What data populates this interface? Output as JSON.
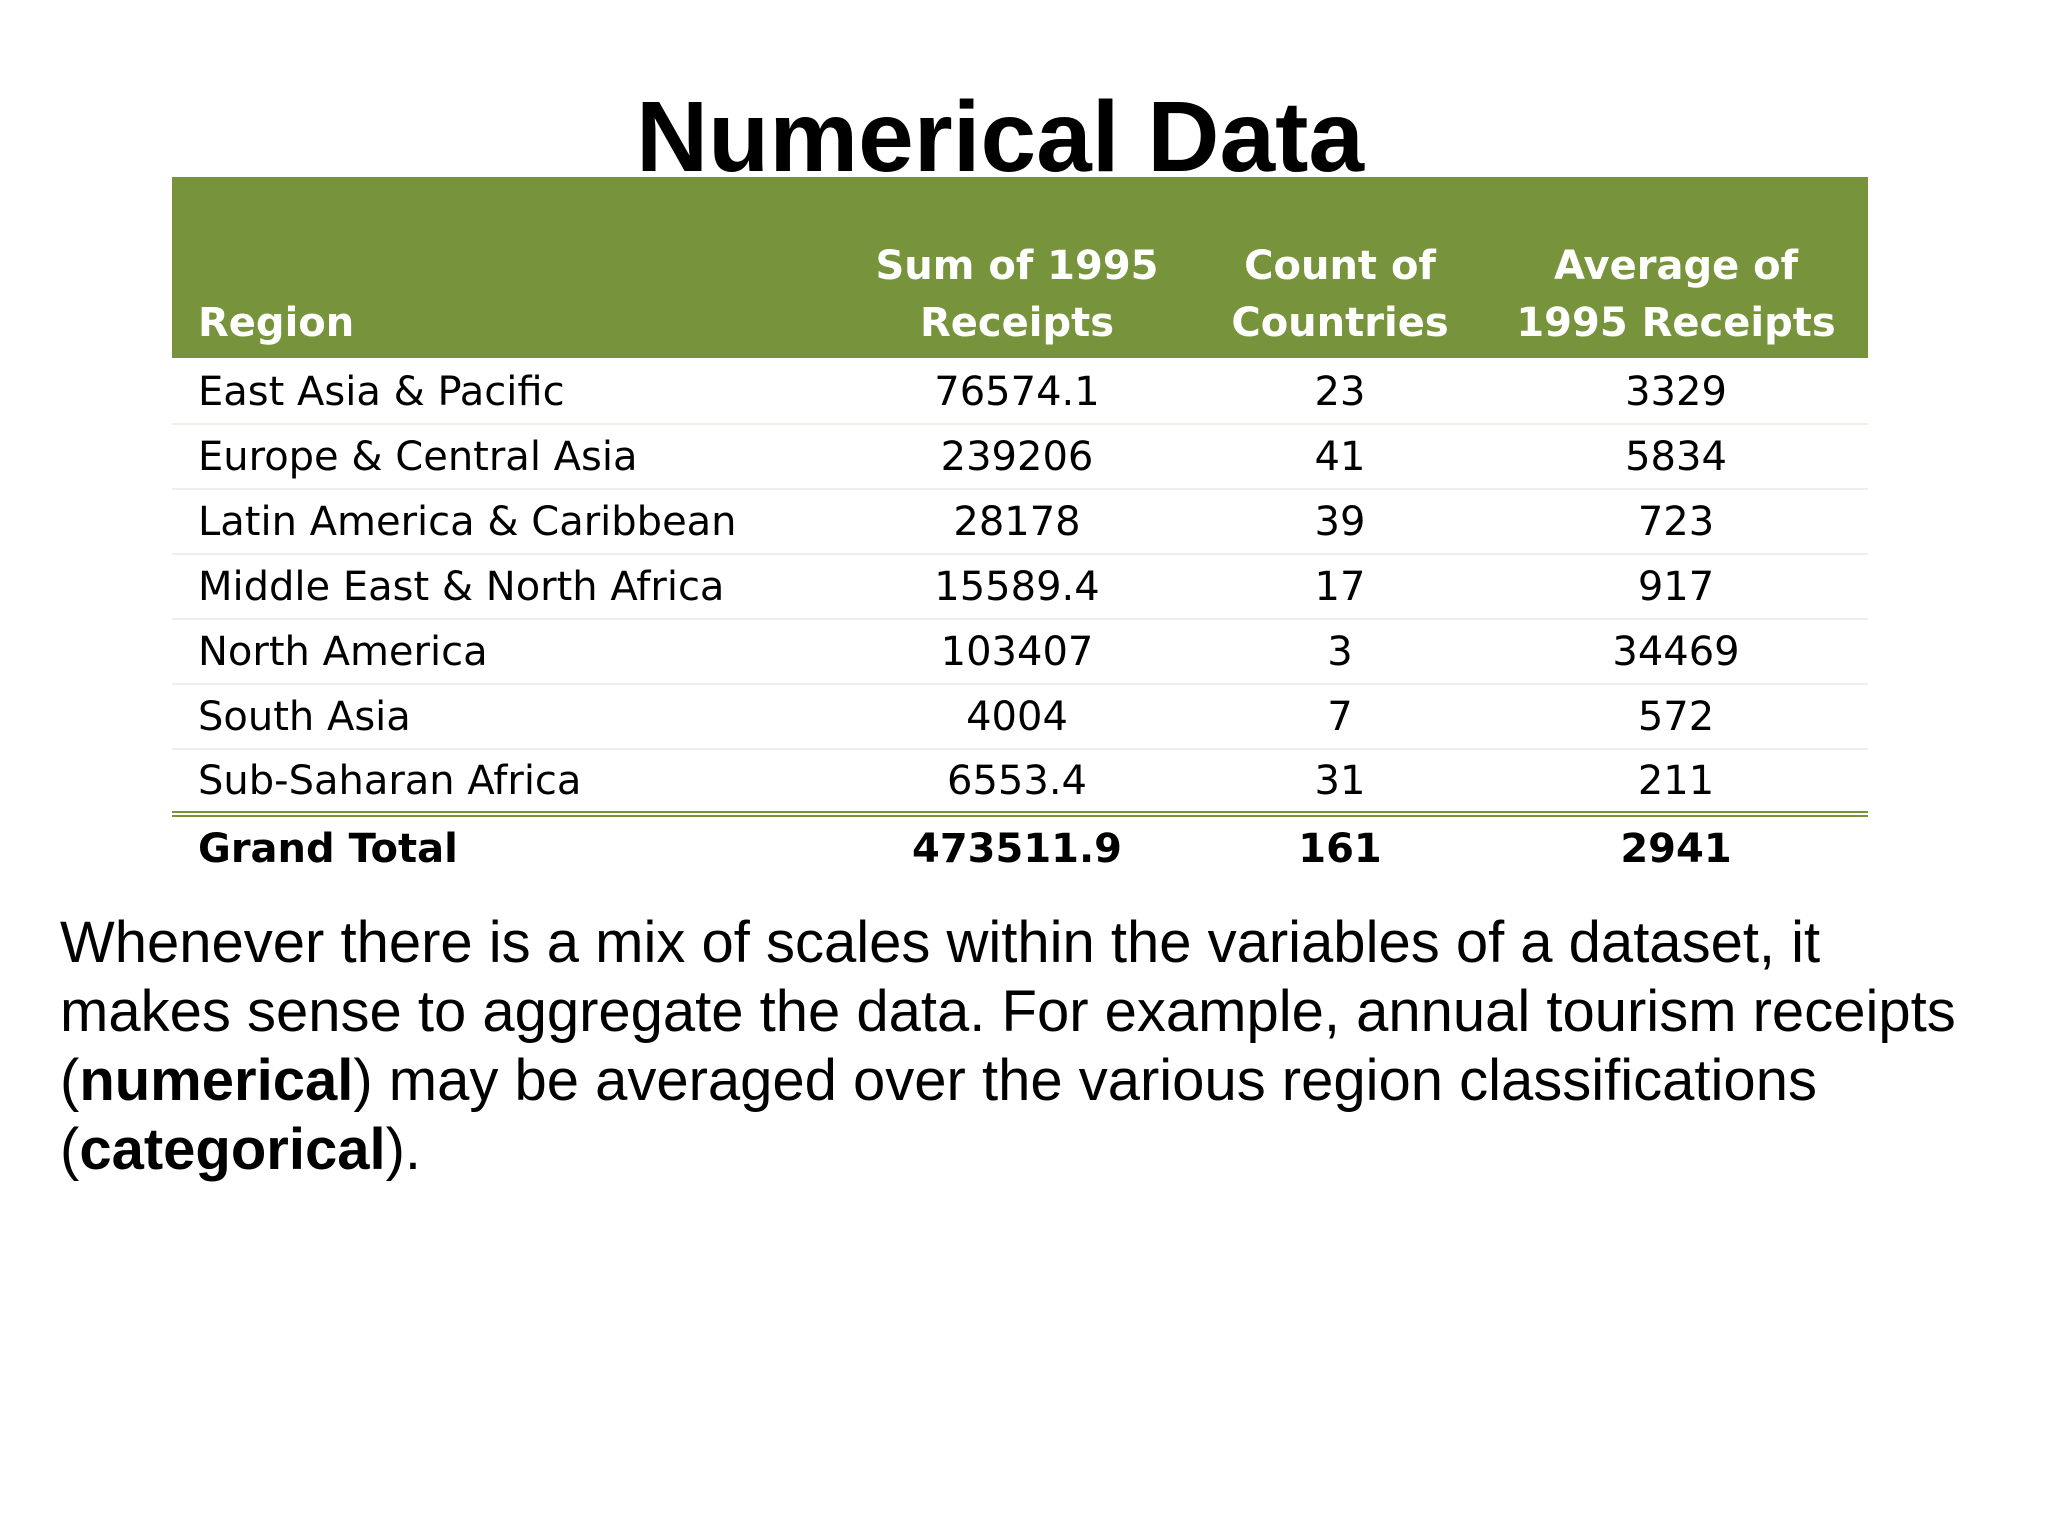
{
  "slide": {
    "title": "Numerical Data"
  },
  "table": {
    "headers": {
      "region": "Region",
      "sum_line1": "Sum of 1995",
      "sum_line2": "Receipts",
      "count_line1": "Count of",
      "count_line2": "Countries",
      "avg_line1": "Average of",
      "avg_line2": "1995 Receipts"
    },
    "rows": [
      {
        "region": "East Asia & Pacific",
        "sum": "76574.1",
        "count": "23",
        "avg": "3329"
      },
      {
        "region": "Europe & Central Asia",
        "sum": "239206",
        "count": "41",
        "avg": "5834"
      },
      {
        "region": "Latin America & Caribbean",
        "sum": "28178",
        "count": "39",
        "avg": "723"
      },
      {
        "region": "Middle East & North Africa",
        "sum": "15589.4",
        "count": "17",
        "avg": "917"
      },
      {
        "region": "North America",
        "sum": "103407",
        "count": "3",
        "avg": "34469"
      },
      {
        "region": "South Asia",
        "sum": "4004",
        "count": "7",
        "avg": "572"
      },
      {
        "region": "Sub-Saharan Africa",
        "sum": "6553.4",
        "count": "31",
        "avg": "211"
      }
    ],
    "total": {
      "label": "Grand Total",
      "sum": "473511.9",
      "count": "161",
      "avg": "2941"
    },
    "colors": {
      "header_background": "#77933c",
      "header_text": "#ffffff",
      "total_rule": "#77933c"
    }
  },
  "paragraph": {
    "part1": "Whenever there is a mix of scales within the variables of a dataset, it makes sense to aggregate the data. For example, annual tourism receipts (",
    "bold1": "numerical",
    "part2": ") may be averaged over the various region classifications (",
    "bold2": "categorical",
    "part3": ")."
  }
}
